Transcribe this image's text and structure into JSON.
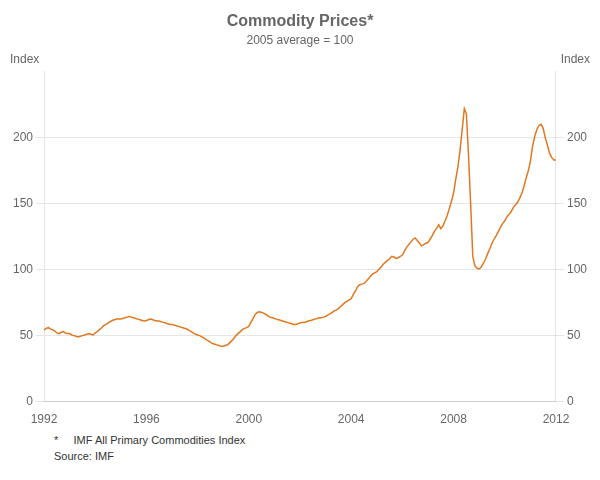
{
  "chart_data": {
    "type": "line",
    "title": "Commodity Prices*",
    "subtitle": "2005 average = 100",
    "ylabel": "Index",
    "y2label": "Index",
    "annotations": [
      "*     IMF All Primary Commodities Index",
      "Source: IMF"
    ],
    "color": "#E07820",
    "grid": "y",
    "xlim": [
      1992,
      2012
    ],
    "xticks": [
      1992,
      1996,
      2000,
      2004,
      2008,
      2012
    ],
    "ylim": [
      0,
      250
    ],
    "yticks": [
      0,
      50,
      100,
      150,
      200
    ],
    "y2lim": [
      0,
      250
    ],
    "y2ticks": [
      0,
      50,
      100,
      150,
      200
    ],
    "x": [
      1992.0,
      1992.08,
      1992.17,
      1992.25,
      1992.33,
      1992.42,
      1992.5,
      1992.58,
      1992.67,
      1992.75,
      1992.83,
      1992.92,
      1993.0,
      1993.08,
      1993.17,
      1993.25,
      1993.33,
      1993.42,
      1993.5,
      1993.58,
      1993.67,
      1993.75,
      1993.83,
      1993.92,
      1994.0,
      1994.08,
      1994.17,
      1994.25,
      1994.33,
      1994.42,
      1994.5,
      1994.58,
      1994.67,
      1994.75,
      1994.83,
      1994.92,
      1995.0,
      1995.08,
      1995.17,
      1995.25,
      1995.33,
      1995.42,
      1995.5,
      1995.58,
      1995.67,
      1995.75,
      1995.83,
      1995.92,
      1996.0,
      1996.08,
      1996.17,
      1996.25,
      1996.33,
      1996.42,
      1996.5,
      1996.58,
      1996.67,
      1996.75,
      1996.83,
      1996.92,
      1997.0,
      1997.08,
      1997.17,
      1997.25,
      1997.33,
      1997.42,
      1997.5,
      1997.58,
      1997.67,
      1997.75,
      1997.83,
      1997.92,
      1998.0,
      1998.08,
      1998.17,
      1998.25,
      1998.33,
      1998.42,
      1998.5,
      1998.58,
      1998.67,
      1998.75,
      1998.83,
      1998.92,
      1999.0,
      1999.08,
      1999.17,
      1999.25,
      1999.33,
      1999.42,
      1999.5,
      1999.58,
      1999.67,
      1999.75,
      1999.83,
      1999.92,
      2000.0,
      2000.08,
      2000.17,
      2000.25,
      2000.33,
      2000.42,
      2000.5,
      2000.58,
      2000.67,
      2000.75,
      2000.83,
      2000.92,
      2001.0,
      2001.08,
      2001.17,
      2001.25,
      2001.33,
      2001.42,
      2001.5,
      2001.58,
      2001.67,
      2001.75,
      2001.83,
      2001.92,
      2002.0,
      2002.08,
      2002.17,
      2002.25,
      2002.33,
      2002.42,
      2002.5,
      2002.58,
      2002.67,
      2002.75,
      2002.83,
      2002.92,
      2003.0,
      2003.08,
      2003.17,
      2003.25,
      2003.33,
      2003.42,
      2003.5,
      2003.58,
      2003.67,
      2003.75,
      2003.83,
      2003.92,
      2004.0,
      2004.08,
      2004.17,
      2004.25,
      2004.33,
      2004.42,
      2004.5,
      2004.58,
      2004.67,
      2004.75,
      2004.83,
      2004.92,
      2005.0,
      2005.08,
      2005.17,
      2005.25,
      2005.33,
      2005.42,
      2005.5,
      2005.58,
      2005.67,
      2005.75,
      2005.83,
      2005.92,
      2006.0,
      2006.08,
      2006.17,
      2006.25,
      2006.33,
      2006.42,
      2006.5,
      2006.58,
      2006.67,
      2006.75,
      2006.83,
      2006.92,
      2007.0,
      2007.08,
      2007.17,
      2007.25,
      2007.33,
      2007.42,
      2007.5,
      2007.58,
      2007.67,
      2007.75,
      2007.83,
      2007.92,
      2008.0,
      2008.08,
      2008.17,
      2008.25,
      2008.33,
      2008.42,
      2008.5,
      2008.58,
      2008.67,
      2008.75,
      2008.83,
      2008.92,
      2009.0,
      2009.08,
      2009.17,
      2009.25,
      2009.33,
      2009.42,
      2009.5,
      2009.58,
      2009.67,
      2009.75,
      2009.83,
      2009.92,
      2010.0,
      2010.08,
      2010.17,
      2010.25,
      2010.33,
      2010.42,
      2010.5,
      2010.58,
      2010.67,
      2010.75,
      2010.83,
      2010.92,
      2011.0,
      2011.08,
      2011.17,
      2011.25,
      2011.33,
      2011.42,
      2011.5,
      2011.58,
      2011.67,
      2011.75,
      2011.83,
      2011.92,
      2012.0
    ],
    "values": [
      54.0,
      55.5,
      56.0,
      55.0,
      54.5,
      53.5,
      52.0,
      51.5,
      52.5,
      53.0,
      52.0,
      51.5,
      51.5,
      50.5,
      50.0,
      49.5,
      49.0,
      49.5,
      50.0,
      50.5,
      51.0,
      51.5,
      51.0,
      50.5,
      52.0,
      53.0,
      54.5,
      56.0,
      57.5,
      58.5,
      59.5,
      60.5,
      61.5,
      62.0,
      62.5,
      62.5,
      62.5,
      63.0,
      63.5,
      64.0,
      64.5,
      64.0,
      63.5,
      63.0,
      62.5,
      62.0,
      61.5,
      61.0,
      61.5,
      62.0,
      62.5,
      62.0,
      61.5,
      61.0,
      61.0,
      60.5,
      60.0,
      59.5,
      59.0,
      58.5,
      58.5,
      58.0,
      57.5,
      57.0,
      56.5,
      56.0,
      55.5,
      55.0,
      54.0,
      53.0,
      52.0,
      51.0,
      50.5,
      50.0,
      49.0,
      48.0,
      47.0,
      46.0,
      45.0,
      44.0,
      43.5,
      43.0,
      42.5,
      42.0,
      42.0,
      42.5,
      43.0,
      44.5,
      46.0,
      48.0,
      50.0,
      51.5,
      53.0,
      54.5,
      55.5,
      56.0,
      57.0,
      60.0,
      63.0,
      66.0,
      67.5,
      68.0,
      67.5,
      67.0,
      66.0,
      65.0,
      64.0,
      63.5,
      63.0,
      62.5,
      62.0,
      61.5,
      61.0,
      60.5,
      60.0,
      59.5,
      59.0,
      58.5,
      58.5,
      59.0,
      59.5,
      60.0,
      60.0,
      60.5,
      61.0,
      61.5,
      62.0,
      62.5,
      63.0,
      63.5,
      63.5,
      64.0,
      64.5,
      65.5,
      66.5,
      67.5,
      68.5,
      69.5,
      70.5,
      72.0,
      73.5,
      75.0,
      76.0,
      77.0,
      78.0,
      81.0,
      84.0,
      87.0,
      88.5,
      89.0,
      89.5,
      91.0,
      93.0,
      95.0,
      96.5,
      97.5,
      98.5,
      100.0,
      102.0,
      104.0,
      105.5,
      107.0,
      108.0,
      110.0,
      109.5,
      108.5,
      109.0,
      110.0,
      111.0,
      114.0,
      117.0,
      119.0,
      121.0,
      123.0,
      124.0,
      122.0,
      120.0,
      118.0,
      119.0,
      120.0,
      120.5,
      123.0,
      126.0,
      129.0,
      131.0,
      134.0,
      131.0,
      133.0,
      137.0,
      141.0,
      146.0,
      152.0,
      158.0,
      168.0,
      178.0,
      190.0,
      205.0,
      222.0,
      218.0,
      188.0,
      148.0,
      110.0,
      103.0,
      101.0,
      100.5,
      102.0,
      105.0,
      108.0,
      112.0,
      116.0,
      120.0,
      123.0,
      126.0,
      129.0,
      132.0,
      135.0,
      137.0,
      140.0,
      142.0,
      144.0,
      147.0,
      149.0,
      151.0,
      154.0,
      158.0,
      163.0,
      169.0,
      175.0,
      182.0,
      193.0,
      201.0,
      206.0,
      209.0,
      210.0,
      207.0,
      200.0,
      194.0,
      188.0,
      185.0,
      183.0,
      183.0
    ]
  }
}
